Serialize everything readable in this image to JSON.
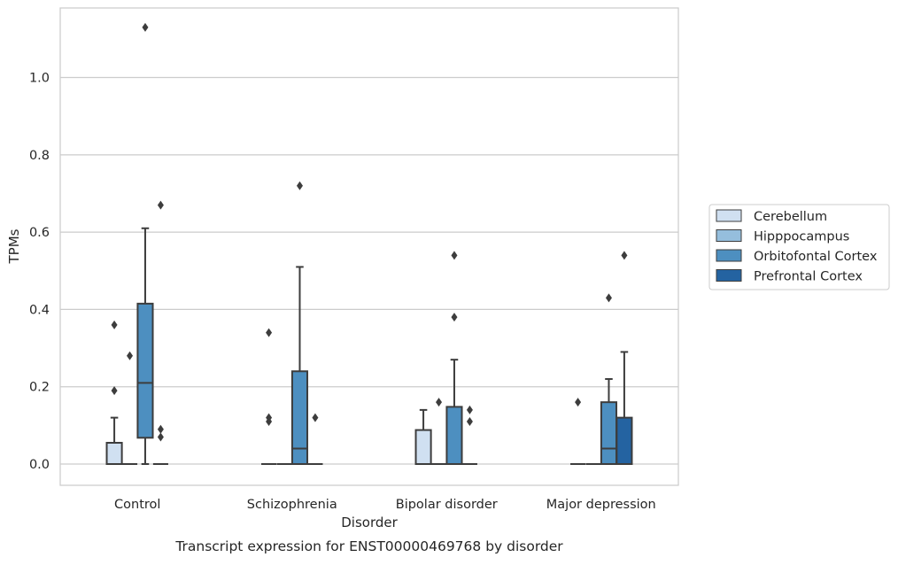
{
  "chart_data": {
    "type": "box",
    "caption": "Transcript expression for ENST00000469768 by disorder",
    "xlabel": "Disorder",
    "ylabel": "TPMs",
    "ylim": [
      -0.055,
      1.18
    ],
    "yticks": [
      0.0,
      0.2,
      0.4,
      0.6,
      0.8,
      1.0
    ],
    "ytick_labels": [
      "0.0",
      "0.2",
      "0.4",
      "0.6",
      "0.8",
      "1.0"
    ],
    "grid": "horizontal",
    "legend_position": "right",
    "categories": [
      "Control",
      "Schizophrenia",
      "Bipolar disorder",
      "Major depression"
    ],
    "series": [
      {
        "name": "Cerebellum",
        "color": "#d0e0f1",
        "boxes": [
          {
            "q1": 0.0,
            "median": 0.0,
            "q3": 0.055,
            "whisker_low": 0.0,
            "whisker_high": 0.12,
            "outliers": [
              0.19,
              0.36
            ]
          },
          {
            "q1": 0.0,
            "median": 0.0,
            "q3": 0.0,
            "whisker_low": 0.0,
            "whisker_high": 0.0,
            "outliers": [
              0.11,
              0.12,
              0.34
            ]
          },
          {
            "q1": 0.0,
            "median": 0.0,
            "q3": 0.088,
            "whisker_low": 0.0,
            "whisker_high": 0.14,
            "outliers": []
          },
          {
            "q1": 0.0,
            "median": 0.0,
            "q3": 0.0,
            "whisker_low": 0.0,
            "whisker_high": 0.0,
            "outliers": [
              0.16
            ]
          }
        ]
      },
      {
        "name": "Hipppocampus",
        "color": "#95bedd",
        "boxes": [
          {
            "q1": 0.0,
            "median": 0.0,
            "q3": 0.0,
            "whisker_low": 0.0,
            "whisker_high": 0.0,
            "outliers": [
              0.28
            ]
          },
          {
            "q1": 0.0,
            "median": 0.0,
            "q3": 0.0,
            "whisker_low": 0.0,
            "whisker_high": 0.0,
            "outliers": []
          },
          {
            "q1": 0.0,
            "median": 0.0,
            "q3": 0.0,
            "whisker_low": 0.0,
            "whisker_high": 0.0,
            "outliers": [
              0.16
            ]
          },
          {
            "q1": 0.0,
            "median": 0.0,
            "q3": 0.0,
            "whisker_low": 0.0,
            "whisker_high": 0.0,
            "outliers": []
          }
        ]
      },
      {
        "name": "Orbitofontal Cortex",
        "color": "#4d8fc0",
        "boxes": [
          {
            "q1": 0.068,
            "median": 0.21,
            "q3": 0.415,
            "whisker_low": 0.0,
            "whisker_high": 0.61,
            "outliers": [
              1.13
            ]
          },
          {
            "q1": 0.0,
            "median": 0.04,
            "q3": 0.24,
            "whisker_low": 0.0,
            "whisker_high": 0.51,
            "outliers": [
              0.72
            ]
          },
          {
            "q1": 0.0,
            "median": 0.0,
            "q3": 0.148,
            "whisker_low": 0.0,
            "whisker_high": 0.27,
            "outliers": [
              0.38,
              0.54
            ]
          },
          {
            "q1": 0.0,
            "median": 0.04,
            "q3": 0.16,
            "whisker_low": 0.0,
            "whisker_high": 0.22,
            "outliers": [
              0.43
            ]
          }
        ]
      },
      {
        "name": "Prefrontal Cortex",
        "color": "#2463a1",
        "boxes": [
          {
            "q1": 0.0,
            "median": 0.0,
            "q3": 0.0,
            "whisker_low": 0.0,
            "whisker_high": 0.0,
            "outliers": [
              0.07,
              0.09,
              0.67
            ]
          },
          {
            "q1": 0.0,
            "median": 0.0,
            "q3": 0.0,
            "whisker_low": 0.0,
            "whisker_high": 0.0,
            "outliers": [
              0.12
            ]
          },
          {
            "q1": 0.0,
            "median": 0.0,
            "q3": 0.0,
            "whisker_low": 0.0,
            "whisker_high": 0.0,
            "outliers": [
              0.11,
              0.14
            ]
          },
          {
            "q1": 0.0,
            "median": 0.0,
            "q3": 0.12,
            "whisker_low": 0.0,
            "whisker_high": 0.29,
            "outliers": [
              0.54
            ]
          }
        ]
      }
    ]
  }
}
